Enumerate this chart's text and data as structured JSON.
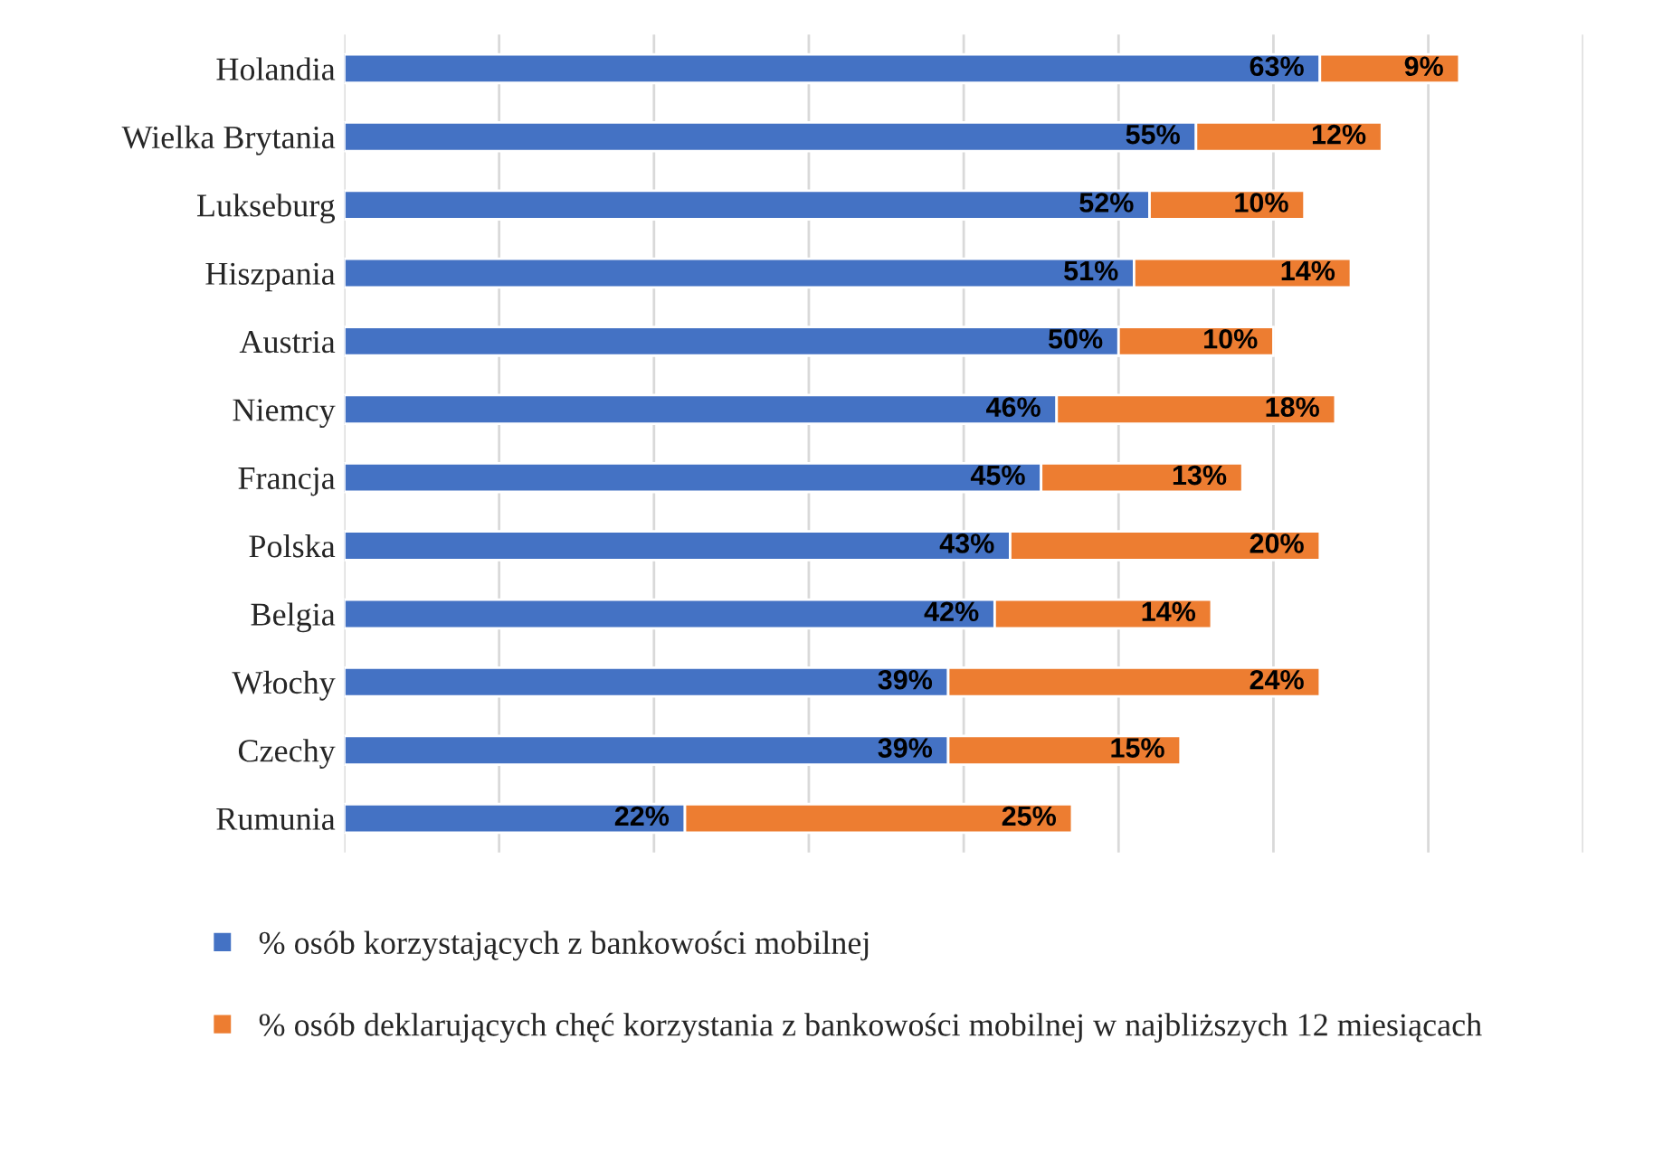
{
  "chart_data": {
    "type": "bar",
    "orientation": "horizontal",
    "stacked": true,
    "categories": [
      "Holandia",
      "Wielka Brytania",
      "Lukseburg",
      "Hiszpania",
      "Austria",
      "Niemcy",
      "Francja",
      "Polska",
      "Belgia",
      "Włochy",
      "Czechy",
      "Rumunia"
    ],
    "series": [
      {
        "name": "% osób korzystających z bankowości mobilnej",
        "color": "#4472c4",
        "values": [
          63,
          55,
          52,
          51,
          50,
          46,
          45,
          43,
          42,
          39,
          39,
          22
        ],
        "value_labels": [
          "63%",
          "55%",
          "52%",
          "51%",
          "50%",
          "46%",
          "45%",
          "43%",
          "42%",
          "39%",
          "39%",
          "22%"
        ]
      },
      {
        "name": "% osób deklarujących chęć korzystania z bankowości mobilnej w najbliższych 12 miesiącach",
        "color": "#ed7d31",
        "values": [
          9,
          12,
          10,
          14,
          10,
          18,
          13,
          20,
          14,
          24,
          15,
          25
        ],
        "value_labels": [
          "9%",
          "12%",
          "10%",
          "14%",
          "10%",
          "18%",
          "13%",
          "20%",
          "14%",
          "24%",
          "15%",
          "25%"
        ]
      }
    ],
    "xlim": [
      0,
      80
    ],
    "xticks": [
      {
        "value": 0,
        "label": null
      },
      {
        "value": 10,
        "label": null
      },
      {
        "value": 20,
        "label": null
      },
      {
        "value": 30,
        "label": null
      },
      {
        "value": 40,
        "label": null
      },
      {
        "value": 50,
        "label": null
      },
      {
        "value": 60,
        "label": null
      },
      {
        "value": 70,
        "label": null
      },
      {
        "value": 80,
        "label": null
      }
    ],
    "grid": "x",
    "legend": "bottom",
    "tick_labels": "y"
  }
}
